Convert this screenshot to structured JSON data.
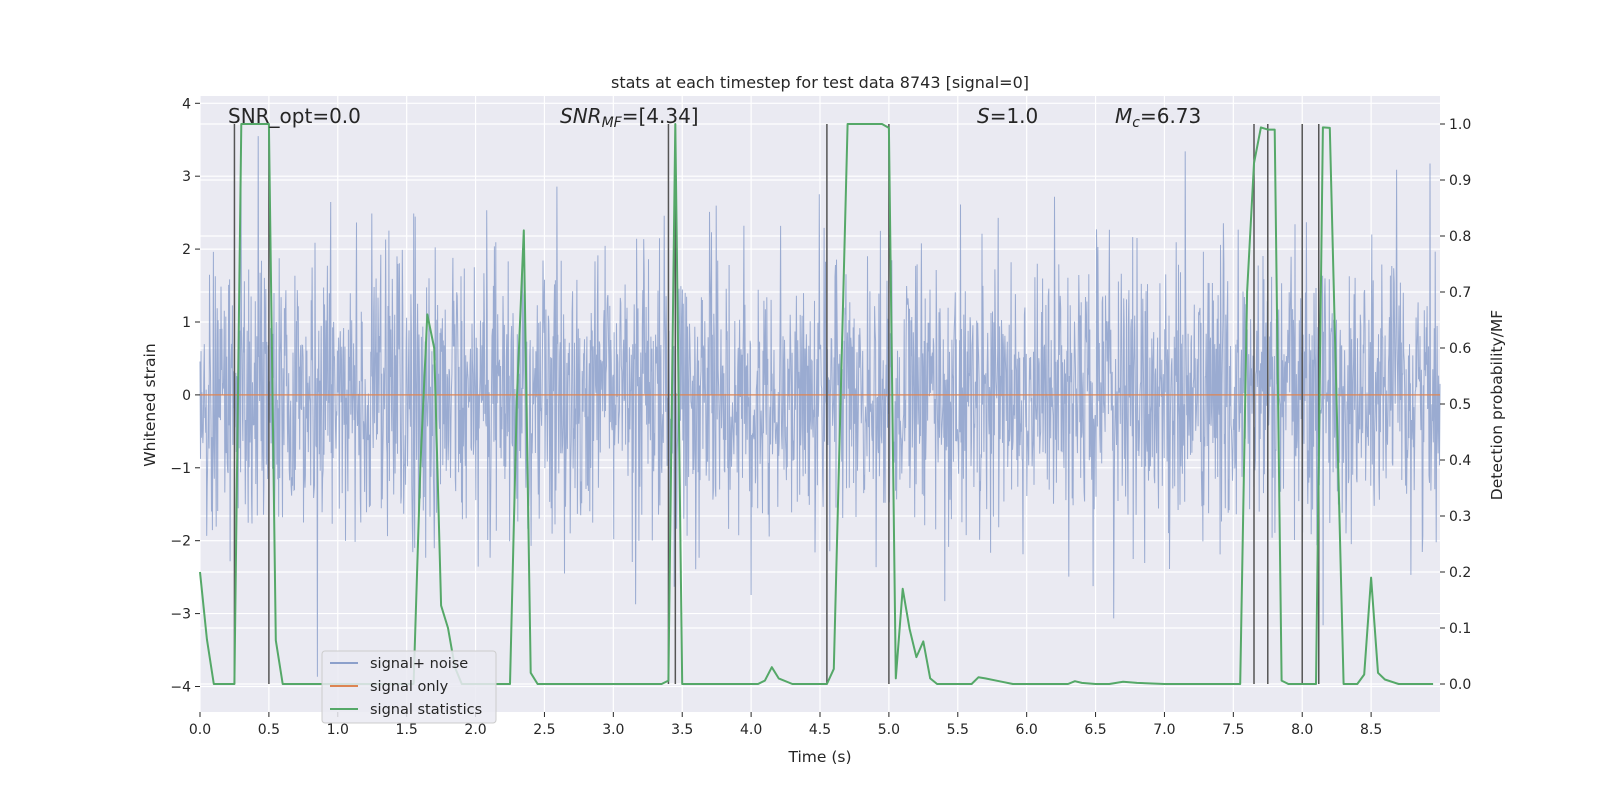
{
  "chart_data": {
    "type": "line",
    "title": "stats at each timestep for test data 8743 [signal=0]",
    "xlabel": "Time (s)",
    "ylabel_left": "Whitened strain",
    "ylabel_right": "Detection probability/MF",
    "xlim": [
      0.0,
      9.0
    ],
    "ylim_left": [
      -4.35,
      4.1
    ],
    "ylim_right": [
      -0.05,
      1.05
    ],
    "grid": true,
    "x_ticks": [
      "0.0",
      "0.5",
      "1.0",
      "1.5",
      "2.0",
      "2.5",
      "3.0",
      "3.5",
      "4.0",
      "4.5",
      "5.0",
      "5.5",
      "6.0",
      "6.5",
      "7.0",
      "7.5",
      "8.0",
      "8.5"
    ],
    "y_ticks_left": [
      "4",
      "3",
      "2",
      "1",
      "0",
      "−1",
      "−2",
      "−3",
      "−4"
    ],
    "y_ticks_right": [
      "1.0",
      "0.9",
      "0.8",
      "0.7",
      "0.6",
      "0.5",
      "0.4",
      "0.3",
      "0.2",
      "0.1",
      "0.0"
    ],
    "annotations": {
      "snr_opt": "SNR_opt=0.0",
      "snr_mf_label": "SNR",
      "snr_mf_sub": "MF",
      "snr_mf_value": "=[4.34]",
      "s_label": "S",
      "s_value": "=1.0",
      "mc_label": "M",
      "mc_sub": "c",
      "mc_value": "=6.73"
    },
    "legend": {
      "position": "lower-left",
      "entries": [
        "signal+ noise",
        "signal only",
        "signal statistics"
      ]
    },
    "colors": {
      "signal_noise": "#8ca0cb",
      "signal_only": "#dd8452",
      "signal_statistics": "#55a868",
      "vlines": "#555555",
      "background": "#eaeaf2"
    },
    "series": [
      {
        "name": "signal+ noise",
        "axis": "left",
        "description_stats": {
          "sigma": 0.95,
          "peak_max": 3.55,
          "peak_min": -3.9
        }
      },
      {
        "name": "signal only",
        "axis": "left",
        "x": [
          0.0,
          9.0
        ],
        "y": [
          0.0,
          0.0
        ]
      },
      {
        "name": "signal statistics",
        "axis": "right",
        "x": [
          0.0,
          0.05,
          0.1,
          0.15,
          0.2,
          0.25,
          0.3,
          0.35,
          0.4,
          0.45,
          0.5,
          0.55,
          0.6,
          0.65,
          0.7,
          0.8,
          0.9,
          1.0,
          1.2,
          1.4,
          1.55,
          1.6,
          1.65,
          1.7,
          1.75,
          1.8,
          1.85,
          1.9,
          2.0,
          2.1,
          2.2,
          2.25,
          2.3,
          2.35,
          2.4,
          2.45,
          2.5,
          2.6,
          2.8,
          3.0,
          3.2,
          3.35,
          3.4,
          3.45,
          3.5,
          3.6,
          3.8,
          4.0,
          4.05,
          4.1,
          4.15,
          4.2,
          4.3,
          4.4,
          4.5,
          4.55,
          4.6,
          4.7,
          4.8,
          4.9,
          4.95,
          5.0,
          5.05,
          5.1,
          5.15,
          5.2,
          5.25,
          5.3,
          5.35,
          5.5,
          5.6,
          5.65,
          5.7,
          5.8,
          5.9,
          6.0,
          6.2,
          6.3,
          6.35,
          6.4,
          6.5,
          6.6,
          6.7,
          6.8,
          7.0,
          7.2,
          7.4,
          7.55,
          7.6,
          7.65,
          7.7,
          7.75,
          7.8,
          7.85,
          7.9,
          8.0,
          8.05,
          8.1,
          8.15,
          8.2,
          8.3,
          8.35,
          8.4,
          8.45,
          8.5,
          8.55,
          8.6,
          8.7,
          8.8,
          8.9,
          8.95
        ],
        "y": [
          0.2,
          0.08,
          0.0,
          0.0,
          0.0,
          0.0,
          1.0,
          1.0,
          1.0,
          1.0,
          1.0,
          0.078,
          0.0,
          0.0,
          0.0,
          0.0,
          0.0,
          0.0,
          0.0,
          0.0,
          0.0,
          0.39,
          0.66,
          0.6,
          0.14,
          0.1,
          0.03,
          0.0,
          0.0,
          0.0,
          0.0,
          0.0,
          0.51,
          0.81,
          0.02,
          0.0,
          0.0,
          0.0,
          0.0,
          0.0,
          0.0,
          0.0,
          0.006,
          1.0,
          0.0,
          0.0,
          0.0,
          0.0,
          0.0,
          0.006,
          0.03,
          0.01,
          0.0,
          0.0,
          0.0,
          0.0,
          0.027,
          1.0,
          1.0,
          1.0,
          1.0,
          0.993,
          0.01,
          0.17,
          0.098,
          0.048,
          0.076,
          0.01,
          0.0,
          0.0,
          0.0,
          0.012,
          0.01,
          0.005,
          0.0,
          0.0,
          0.0,
          0.0,
          0.005,
          0.002,
          0.0,
          0.0,
          0.004,
          0.002,
          0.0,
          0.0,
          0.0,
          0.0,
          0.7,
          0.93,
          0.994,
          0.99,
          0.99,
          0.006,
          0.0,
          0.0,
          0.0,
          0.0,
          0.994,
          0.993,
          0.0,
          0.0,
          0.0,
          0.017,
          0.19,
          0.02,
          0.008,
          0.0,
          0.0,
          0.0,
          0.0
        ]
      }
    ],
    "vlines": [
      0.25,
      0.5,
      3.4,
      3.45,
      4.55,
      5.0,
      7.65,
      7.75,
      8.0,
      8.12
    ]
  }
}
